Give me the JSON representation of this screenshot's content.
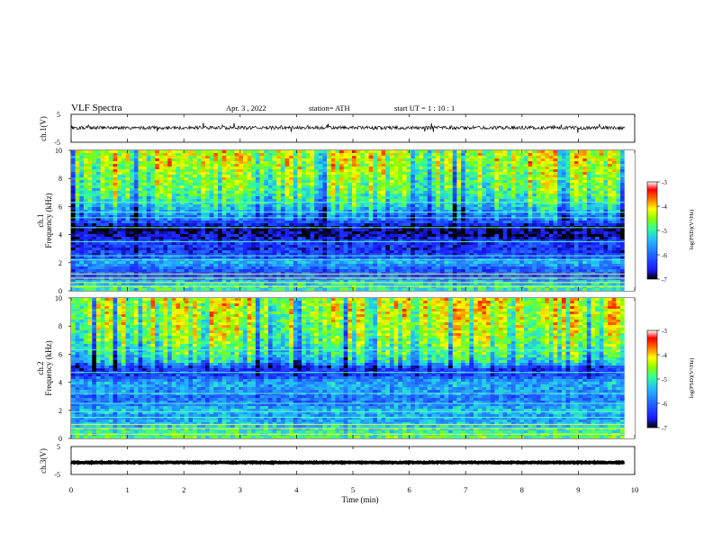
{
  "header": {
    "title": "VLF  Spectra",
    "date": "Apr. 3  , 2022",
    "station": "station= ATH",
    "start": "start  UT  =    1  : 10 : 1"
  },
  "panels": {
    "ch1_wave_label": "ch.1(V)",
    "ch1_spec_label_a": "ch.1",
    "ch1_spec_label_b": "Frequency  (kHz)",
    "ch2_spec_label_a": "ch.2",
    "ch2_spec_label_b": "Frequency  (kHz)",
    "ch3_wave_label": "ch.3(V)",
    "time_label": "Time  (min)",
    "colorbar_label": "log(PSD)(V²/Hz)"
  },
  "colors": {
    "psd_scale": [
      "#000000",
      "#1a1aff",
      "#2266ff",
      "#22bbff",
      "#33ff99",
      "#88ff00",
      "#ffff00",
      "#ff7700",
      "#ff0000",
      "#ffffff"
    ]
  },
  "chart_data": [
    {
      "type": "line",
      "name": "ch1-waveform",
      "ylabel": "ch.1(V)",
      "xlim": [
        0,
        10
      ],
      "ylim": [
        -5,
        5
      ],
      "y_ticks": [
        5,
        -5
      ],
      "x_ticks": [
        0,
        1,
        2,
        3,
        4,
        5,
        6,
        7,
        8,
        9,
        10
      ],
      "data_end_min": 9.82,
      "mean_v": 0.2,
      "noise_v": 0.6
    },
    {
      "type": "heatmap",
      "name": "ch1-spectrogram",
      "ylabel": "Frequency  (kHz)",
      "xlim": [
        0,
        10
      ],
      "ylim": [
        0,
        10
      ],
      "y_ticks": [
        0,
        2,
        4,
        6,
        8,
        10
      ],
      "data_end_min": 9.82,
      "colorbar": {
        "label": "log(PSD)(V²/Hz)",
        "range": [
          -7,
          -3
        ],
        "ticks": [
          -3,
          -4,
          -5,
          -6,
          -7
        ]
      },
      "profile_khz": [
        0,
        0.5,
        1,
        1.5,
        2,
        2.5,
        3,
        3.5,
        4,
        4.5,
        5,
        5.5,
        6,
        6.5,
        7,
        8,
        9,
        10
      ],
      "profile_log_psd": [
        -5.0,
        -5.2,
        -6.0,
        -6.1,
        -5.5,
        -6.2,
        -6.4,
        -6.3,
        -6.8,
        -6.9,
        -6.0,
        -5.7,
        -5.3,
        -5.0,
        -4.8,
        -4.6,
        -4.4,
        -4.3
      ],
      "lines_khz": [
        0.3,
        0.6,
        0.9,
        1.2,
        2.2,
        2.5,
        3.5,
        4.5,
        5.2,
        5.6,
        6.3
      ]
    },
    {
      "type": "heatmap",
      "name": "ch2-spectrogram",
      "ylabel": "Frequency  (kHz)",
      "xlim": [
        0,
        10
      ],
      "ylim": [
        0,
        10
      ],
      "y_ticks": [
        0,
        2,
        4,
        6,
        8,
        10
      ],
      "data_end_min": 9.82,
      "colorbar": {
        "label": "log(PSD)(V²/Hz)",
        "range": [
          -7,
          -3
        ],
        "ticks": [
          -3,
          -4,
          -5,
          -6,
          -7
        ]
      },
      "profile_khz": [
        0,
        0.5,
        1,
        1.5,
        2,
        2.5,
        3,
        3.5,
        4,
        4.5,
        5,
        5.5,
        6,
        6.5,
        7,
        8,
        9,
        10
      ],
      "profile_log_psd": [
        -4.8,
        -5.0,
        -5.4,
        -5.6,
        -5.4,
        -5.8,
        -5.9,
        -5.6,
        -5.5,
        -6.3,
        -6.4,
        -5.3,
        -5.0,
        -4.9,
        -4.7,
        -4.5,
        -4.4,
        -4.3
      ],
      "lines_khz": [
        0.3,
        0.7,
        1.0,
        1.5,
        1.9,
        2.5,
        3.2,
        4.7,
        6.3
      ]
    },
    {
      "type": "line",
      "name": "ch3-waveform",
      "ylabel": "ch.3(V)",
      "xlabel": "Time  (min)",
      "xlim": [
        0,
        10
      ],
      "ylim": [
        -5,
        5
      ],
      "y_ticks": [
        5,
        -5
      ],
      "x_ticks": [
        0,
        1,
        2,
        3,
        4,
        5,
        6,
        7,
        8,
        9,
        10
      ],
      "data_end_min": 9.82,
      "mean_v": -0.7,
      "noise_v": 0.15
    }
  ]
}
